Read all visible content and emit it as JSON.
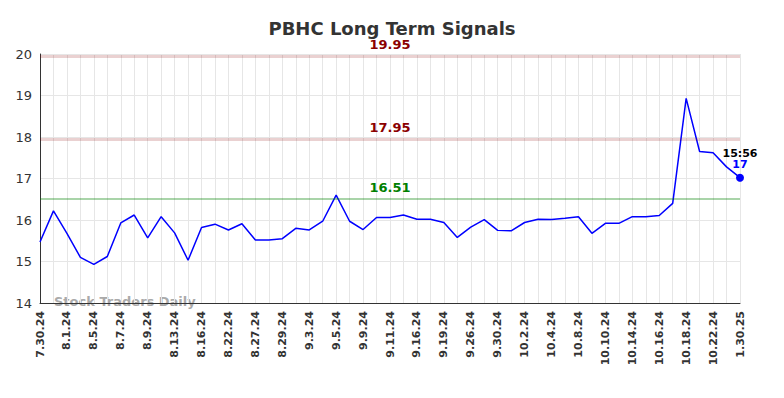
{
  "chart_data": {
    "type": "line",
    "title": "PBHC Long Term Signals",
    "categories": [
      "7.30.24",
      null,
      "8.1.24",
      null,
      "8.5.24",
      null,
      "8.7.24",
      null,
      "8.9.24",
      null,
      "8.13.24",
      null,
      "8.16.24",
      null,
      "8.22.24",
      null,
      "8.27.24",
      null,
      "8.29.24",
      null,
      "9.3.24",
      null,
      "9.5.24",
      null,
      "9.9.24",
      null,
      "9.11.24",
      null,
      "9.16.24",
      null,
      "9.19.24",
      null,
      "9.26.24",
      null,
      "9.30.24",
      null,
      "10.2.24",
      null,
      "10.4.24",
      null,
      "10.8.24",
      null,
      "10.10.24",
      null,
      "10.14.24",
      null,
      "10.16.24",
      null,
      "10.18.24",
      null,
      "10.22.24",
      null,
      "1.30.25"
    ],
    "values": [
      15.47,
      16.22,
      15.68,
      15.1,
      14.93,
      15.12,
      15.93,
      16.12,
      15.57,
      16.08,
      15.69,
      15.03,
      15.82,
      15.9,
      15.76,
      15.91,
      15.52,
      15.52,
      15.55,
      15.8,
      15.76,
      15.97,
      16.6,
      15.97,
      15.77,
      16.06,
      16.06,
      16.12,
      16.02,
      16.02,
      15.94,
      15.58,
      15.83,
      16.01,
      15.75,
      15.74,
      15.94,
      16.02,
      16.01,
      16.04,
      16.08,
      15.68,
      15.92,
      15.92,
      16.08,
      16.08,
      16.11,
      16.4,
      18.93,
      17.65,
      17.62,
      17.28,
      17.02
    ],
    "value_labels": [
      null,
      null,
      null,
      null,
      null,
      null,
      null,
      null,
      null,
      null,
      null,
      null,
      null,
      null,
      null,
      null,
      null,
      null,
      null,
      null,
      null,
      null,
      null,
      null,
      null,
      null,
      null,
      null,
      null,
      null,
      null,
      null,
      null,
      null,
      null,
      null,
      null,
      null,
      null,
      null,
      null,
      null,
      null,
      null,
      null,
      null,
      null,
      null,
      null,
      null,
      null,
      null,
      "17"
    ],
    "color": "#0000ff",
    "marker": "circle",
    "annotations": [
      {
        "text": "15:56"
      },
      {
        "text": "Stock Traders Daily"
      }
    ],
    "reference_lines": [
      {
        "value": 19.95,
        "color": "#8b0000"
      },
      {
        "value": 17.95,
        "color": "#8b0000"
      },
      {
        "value": 16.51,
        "color": "#008000"
      }
    ],
    "ylim": [
      14,
      20
    ],
    "yticks": [
      14,
      15,
      16,
      17,
      18,
      19,
      20
    ],
    "grid": true
  }
}
